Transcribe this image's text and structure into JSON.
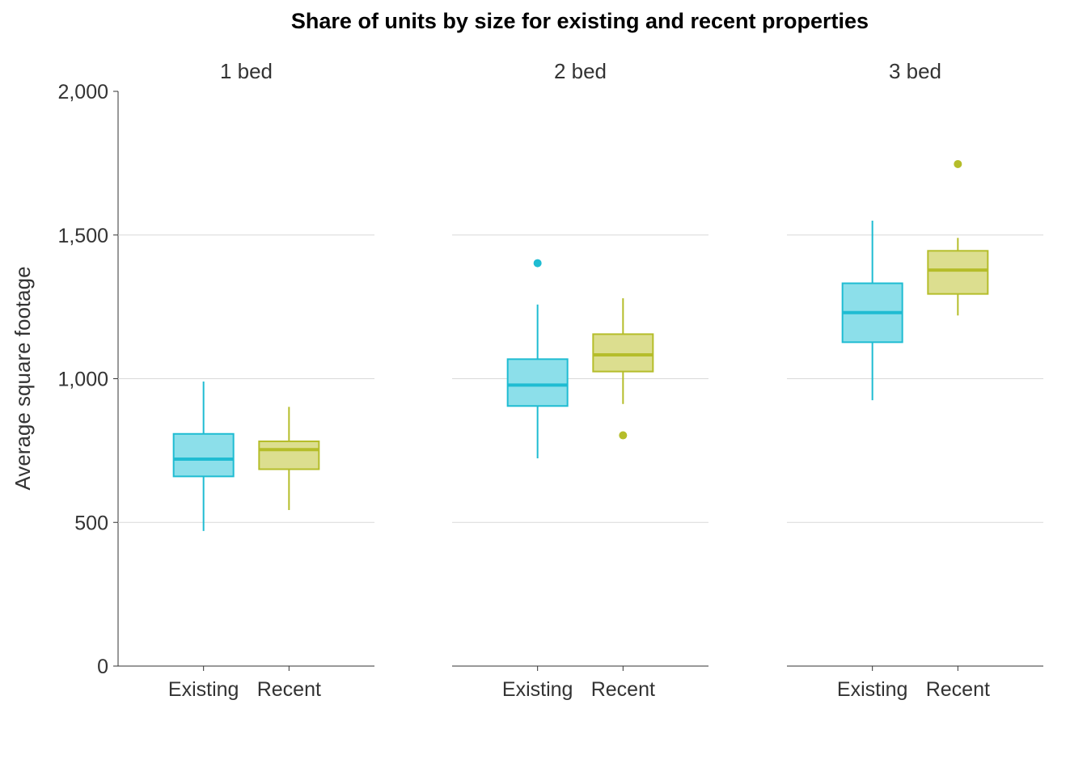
{
  "chart_data": {
    "type": "boxplot",
    "title": "Share of units by size for existing and recent properties",
    "ylabel": "Average square footage",
    "xlabel": "",
    "ylim": [
      0,
      2000
    ],
    "yticks": [
      0,
      500,
      1000,
      1500,
      2000
    ],
    "ytick_labels": [
      "0",
      "500",
      "1,000",
      "1,500",
      "2,000"
    ],
    "grid": "horizontal",
    "categories": [
      "Existing",
      "Recent"
    ],
    "colors": {
      "Existing": {
        "stroke": "#1FBCD2",
        "fill": "#8CDFEA"
      },
      "Recent": {
        "stroke": "#B5BD2A",
        "fill": "#DCDE8F"
      },
      "grid": "#D9D9D9",
      "axis": "#333333"
    },
    "panels": [
      {
        "label": "1 bed",
        "boxes": [
          {
            "group": "Existing",
            "whisker_low": 470,
            "q1": 660,
            "median": 720,
            "q3": 808,
            "whisker_high": 990,
            "outliers": []
          },
          {
            "group": "Recent",
            "whisker_low": 543,
            "q1": 685,
            "median": 753,
            "q3": 782,
            "whisker_high": 902,
            "outliers": []
          }
        ]
      },
      {
        "label": "2 bed",
        "boxes": [
          {
            "group": "Existing",
            "whisker_low": 723,
            "q1": 905,
            "median": 978,
            "q3": 1068,
            "whisker_high": 1258,
            "outliers": [
              1402
            ]
          },
          {
            "group": "Recent",
            "whisker_low": 912,
            "q1": 1025,
            "median": 1083,
            "q3": 1155,
            "whisker_high": 1280,
            "outliers": [
              803
            ]
          }
        ]
      },
      {
        "label": "3 bed",
        "boxes": [
          {
            "group": "Existing",
            "whisker_low": 925,
            "q1": 1127,
            "median": 1230,
            "q3": 1332,
            "whisker_high": 1550,
            "outliers": []
          },
          {
            "group": "Recent",
            "whisker_low": 1220,
            "q1": 1295,
            "median": 1378,
            "q3": 1445,
            "whisker_high": 1490,
            "outliers": [
              1747
            ]
          }
        ]
      }
    ]
  }
}
